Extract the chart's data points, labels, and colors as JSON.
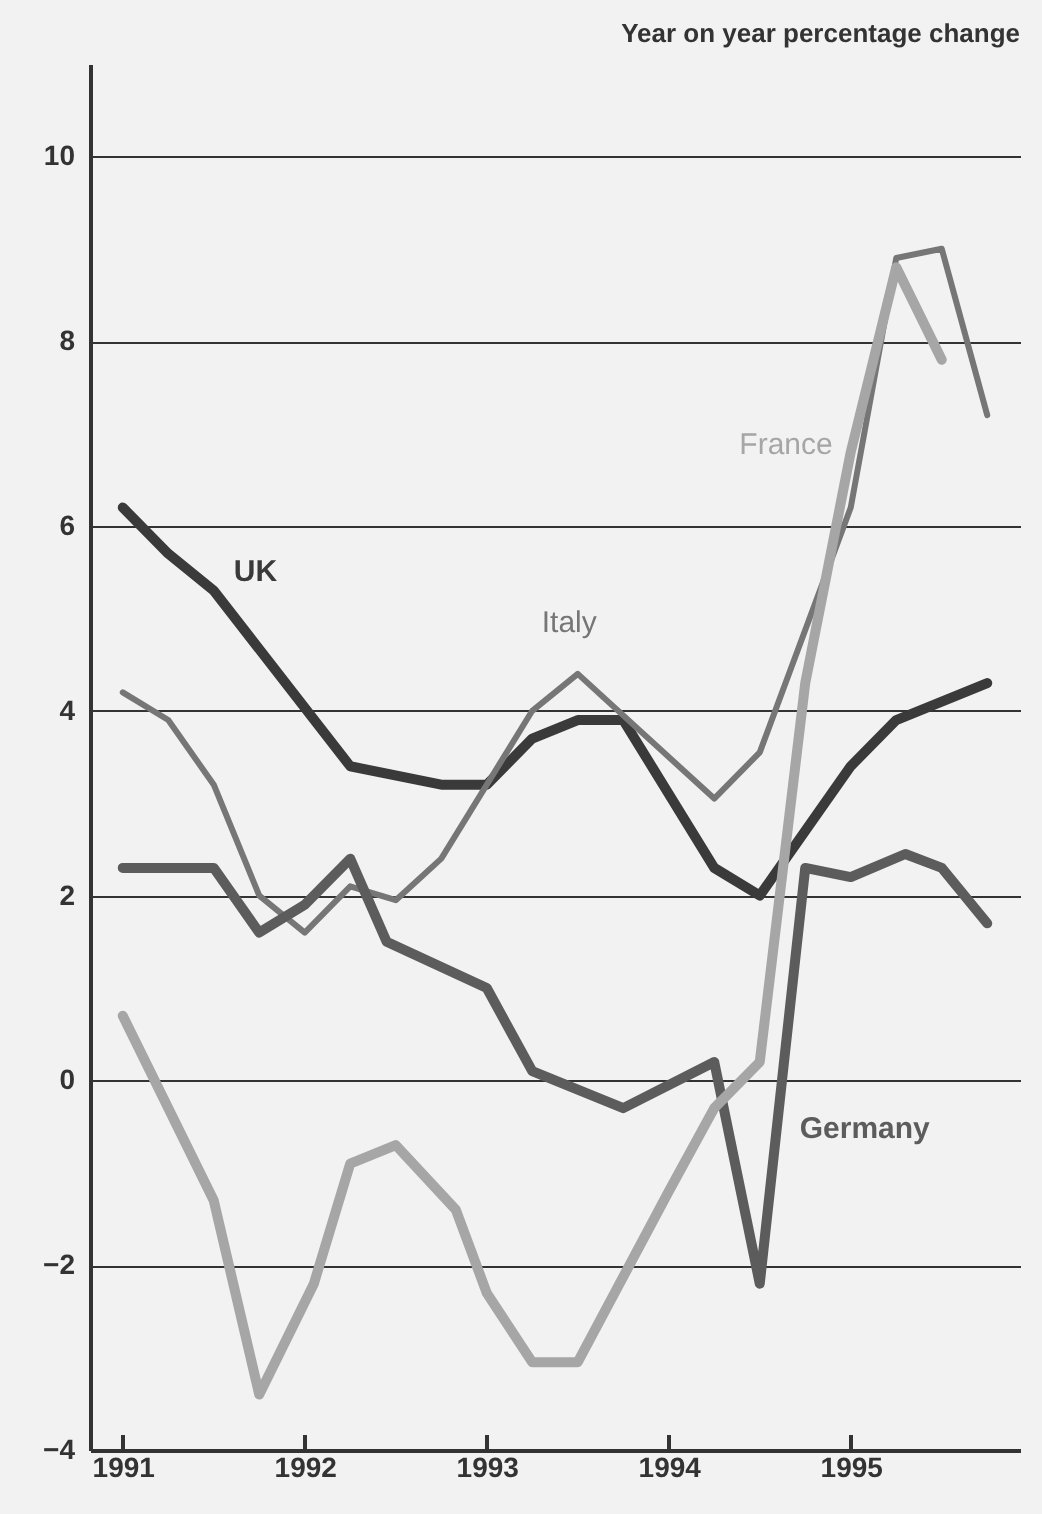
{
  "chart_data": {
    "type": "line",
    "title": "Year on year percentage change",
    "xlim": [
      1990.82,
      1995.93
    ],
    "xticks": [
      1991,
      1992,
      1993,
      1994,
      1995
    ],
    "ylim": [
      -4,
      11
    ],
    "yticks": [
      -4,
      -2,
      0,
      2,
      4,
      6,
      8,
      10
    ],
    "grid": "y",
    "legend": false,
    "series": [
      {
        "name": "UK",
        "color": "#3a3a3a",
        "x": [
          1991.0,
          1991.25,
          1991.5,
          1992.25,
          1992.75,
          1993.0,
          1993.25,
          1993.5,
          1993.75,
          1994.25,
          1994.5,
          1995.0,
          1995.25,
          1995.75
        ],
        "values": [
          6.2,
          5.7,
          5.3,
          3.4,
          3.2,
          3.2,
          3.7,
          3.9,
          3.9,
          2.3,
          2.0,
          3.4,
          3.9,
          4.3
        ]
      },
      {
        "name": "Italy",
        "color": "#767676",
        "x": [
          1991.0,
          1991.25,
          1991.5,
          1991.75,
          1992.0,
          1992.25,
          1992.5,
          1992.75,
          1993.25,
          1993.5,
          1994.25,
          1994.5,
          1995.0,
          1995.25,
          1995.5,
          1995.75
        ],
        "values": [
          4.2,
          3.9,
          3.2,
          2.0,
          1.6,
          2.1,
          1.95,
          2.4,
          4.0,
          4.4,
          3.05,
          3.55,
          6.2,
          8.9,
          9.0,
          7.2
        ]
      },
      {
        "name": "Germany",
        "color": "#5c5c5c",
        "x": [
          1991.0,
          1991.5,
          1991.75,
          1992.0,
          1992.25,
          1992.45,
          1993.0,
          1993.25,
          1993.75,
          1994.25,
          1994.5,
          1994.75,
          1995.0,
          1995.3,
          1995.5,
          1995.75
        ],
        "values": [
          2.3,
          2.3,
          1.6,
          1.9,
          2.4,
          1.5,
          1.0,
          0.1,
          -0.3,
          0.2,
          -2.2,
          2.3,
          2.2,
          2.45,
          2.3,
          1.7
        ]
      },
      {
        "name": "France",
        "color": "#a6a6a6",
        "x": [
          1991.0,
          1991.5,
          1991.75,
          1992.05,
          1992.25,
          1992.5,
          1992.83,
          1993.0,
          1993.25,
          1993.5,
          1994.0,
          1994.25,
          1994.5,
          1994.75,
          1995.0,
          1995.25,
          1995.5
        ],
        "values": [
          0.7,
          -1.3,
          -3.4,
          -2.2,
          -0.9,
          -0.7,
          -1.4,
          -2.3,
          -3.05,
          -3.05,
          -1.2,
          -0.3,
          0.2,
          4.3,
          6.8,
          8.8,
          7.8
        ]
      }
    ]
  }
}
